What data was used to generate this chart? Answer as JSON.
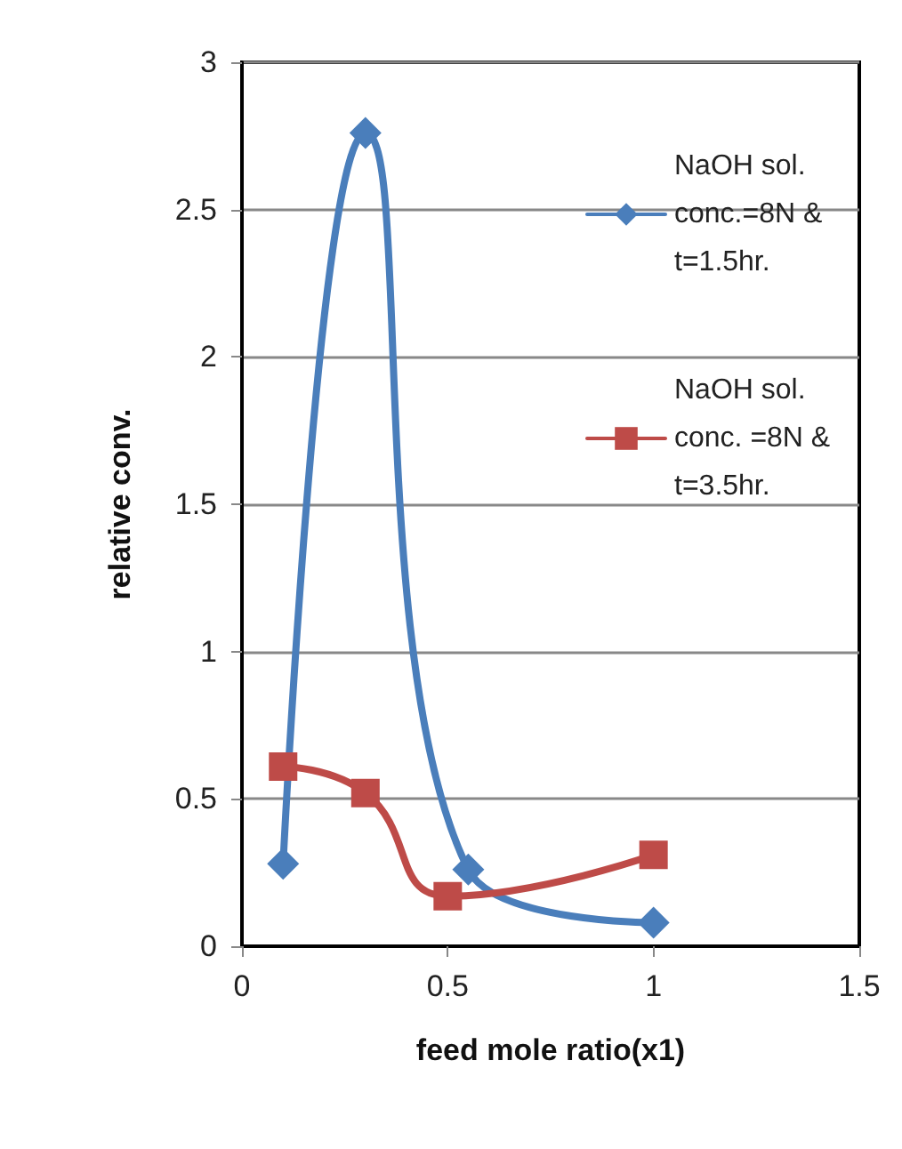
{
  "chart_data": {
    "type": "line",
    "xlabel": "feed mole ratio(x1)",
    "ylabel": "relative conv.",
    "xlim": [
      0,
      1.5
    ],
    "xticks": [
      0,
      0.5,
      1,
      1.5
    ],
    "ylim": [
      0,
      3
    ],
    "yticks": [
      0,
      0.5,
      1,
      1.5,
      2,
      2.5,
      3
    ],
    "grid": "y",
    "legend": "top right",
    "series": [
      {
        "name": "NaOH sol. conc.=8N & t=1.5hr.",
        "color": "#4a7ebb",
        "marker": "diamond",
        "x": [
          0.1,
          0.3,
          0.55,
          1
        ],
        "values": [
          0.28,
          2.76,
          0.26,
          0.08
        ]
      },
      {
        "name": "NaOH sol. conc. =8N & t=3.5hr.",
        "color": "#be4b48",
        "marker": "square",
        "x": [
          0.1,
          0.3,
          0.5,
          1
        ],
        "values": [
          0.61,
          0.52,
          0.17,
          0.31
        ]
      }
    ]
  }
}
